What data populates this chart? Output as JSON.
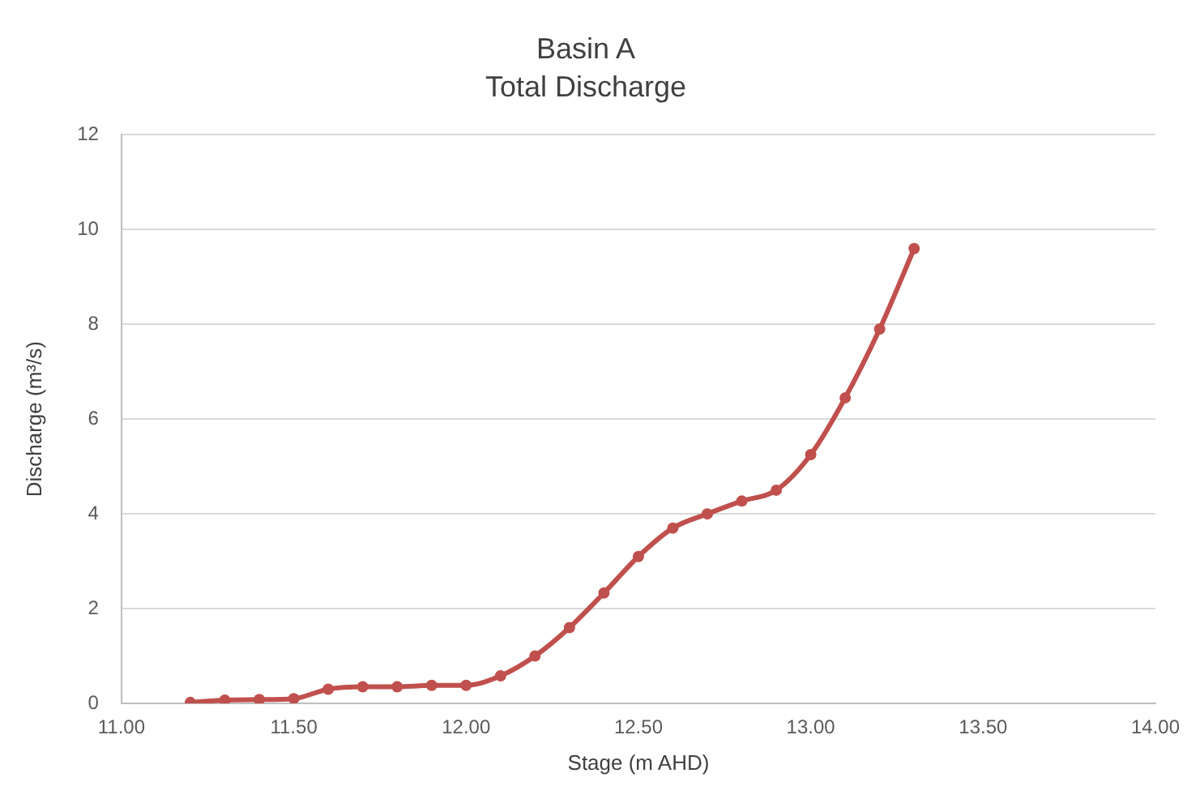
{
  "chart_data": {
    "type": "line",
    "title": "Basin A",
    "subtitle": "Total Discharge",
    "xlabel": "Stage (m AHD)",
    "ylabel": "Discharge (m³/s)",
    "x": [
      11.2,
      11.3,
      11.4,
      11.5,
      11.6,
      11.7,
      11.8,
      11.9,
      12.0,
      12.1,
      12.2,
      12.3,
      12.4,
      12.5,
      12.6,
      12.7,
      12.8,
      12.9,
      13.0,
      13.1,
      13.2,
      13.3
    ],
    "series": [
      {
        "color": "#c0504d",
        "values": [
          0.02,
          0.07,
          0.08,
          0.1,
          0.3,
          0.35,
          0.35,
          0.38,
          0.38,
          0.58,
          1.0,
          1.6,
          2.33,
          3.1,
          3.7,
          4.0,
          4.27,
          4.5,
          5.25,
          6.45,
          7.9,
          9.6
        ]
      }
    ],
    "xlim": [
      11,
      14
    ],
    "xticks": [
      {
        "value": 11,
        "label": "11.00"
      },
      {
        "value": 11.5,
        "label": "11.50"
      },
      {
        "value": 12,
        "label": "12.00"
      },
      {
        "value": 12.5,
        "label": "12.50"
      },
      {
        "value": 13,
        "label": "13.00"
      },
      {
        "value": 13.5,
        "label": "13.50"
      },
      {
        "value": 14,
        "label": "14.00"
      }
    ],
    "ylim": [
      0,
      12
    ],
    "yticks": [
      0,
      2,
      4,
      6,
      8,
      10,
      12
    ],
    "grid": "y",
    "marker": "circle",
    "line_style": "solid",
    "legend": false
  }
}
